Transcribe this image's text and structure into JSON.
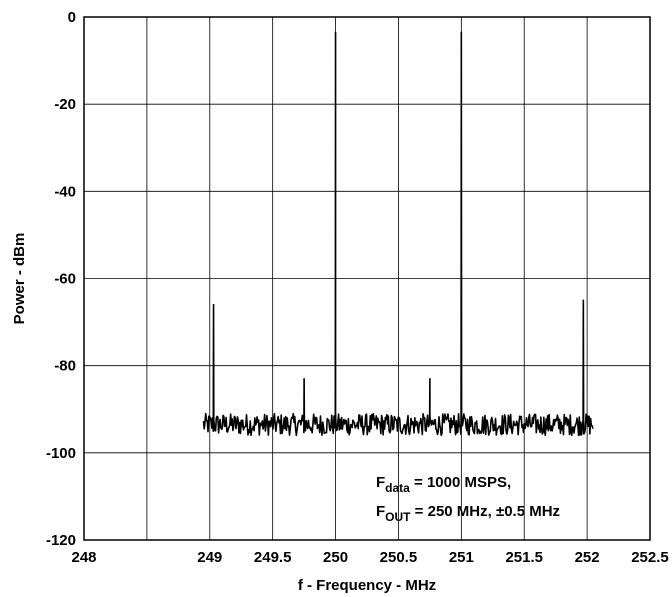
{
  "chart_data": {
    "type": "line",
    "title": "",
    "xlabel": "f - Frequency - MHz",
    "ylabel": "Power - dBm",
    "xlim": [
      248,
      252.5
    ],
    "ylim": [
      -120,
      0
    ],
    "x_ticks": [
      248,
      248.5,
      249,
      249.5,
      250,
      250.5,
      251,
      251.5,
      252,
      252.5
    ],
    "x_tick_labels": [
      "248",
      "",
      "249",
      "249.5",
      "250",
      "250.5",
      "251",
      "251.5",
      "252",
      "252.5"
    ],
    "y_ticks": [
      0,
      -20,
      -40,
      -60,
      -80,
      -100,
      -120
    ],
    "y_tick_labels": [
      "0",
      "-20",
      "-40",
      "-60",
      "-80",
      "-100",
      "-120"
    ],
    "grid": true,
    "line_color": "#000000",
    "noise_floor": {
      "x_range": [
        248.95,
        252.05
      ],
      "level_dbm": -93.5,
      "variation_dbm": 2.5
    },
    "peaks": [
      {
        "x": 249.03,
        "y": -66
      },
      {
        "x": 249.75,
        "y": -83
      },
      {
        "x": 250.0,
        "y": -3.5
      },
      {
        "x": 250.75,
        "y": -83
      },
      {
        "x": 251.0,
        "y": -3.5
      },
      {
        "x": 251.97,
        "y": -65
      }
    ],
    "annotation": {
      "line1_main": "F",
      "line1_sub": "data",
      "line1_rest": " = 1000 MSPS,",
      "line2_main": "F",
      "line2_sub": "OUT",
      "line2_rest": " = 250 MHz, ±0.5 MHz"
    }
  }
}
